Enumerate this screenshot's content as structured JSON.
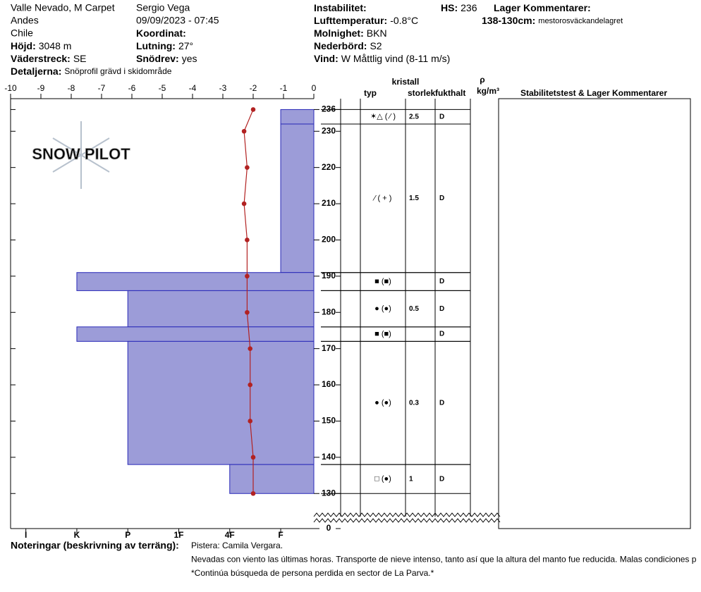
{
  "header": {
    "site": "Valle Nevado, M Carpet",
    "range": "Andes",
    "country": "Chile",
    "elevation": {
      "label": "Höjd:",
      "value": "3048 m"
    },
    "aspect": {
      "label": "Väderstreck:",
      "value": "SE"
    },
    "details": {
      "label": "Detaljerna:",
      "value": "Snöprofil grävd i skidområde"
    },
    "observer": "Sergio Vega",
    "datetime": "09/09/2023 - 07:45",
    "coordinates": {
      "label": "Koordinat:"
    },
    "slope": {
      "label": "Lutning:",
      "value": "27°"
    },
    "wind_loading": {
      "label": "Snödrev:",
      "value": "yes"
    },
    "instability": {
      "label": "Instabilitet:"
    },
    "air_temp": {
      "label": "Lufttemperatur:",
      "value": "-0.8°C"
    },
    "sky": {
      "label": "Molnighet:",
      "value": "BKN"
    },
    "precip": {
      "label": "Nederbörd:",
      "value": "S2"
    },
    "wind": {
      "label": "Vind:",
      "value": "W Måttlig vind (8-11 m/s)"
    },
    "hs": {
      "label": "HS:",
      "value": "236"
    },
    "layer_comments": {
      "label": "Lager Kommentarer:"
    },
    "layer_comment": {
      "label": "138-130cm:",
      "value": "mestorosväckandelagret"
    }
  },
  "logo": "SNOW PILOT",
  "table_headers": {
    "crystal": "kristall",
    "type": "typ",
    "size": "storlek",
    "moisture": "fukthalt",
    "density": "ρ",
    "density_unit": "kg/m³",
    "comments": "Stabilitetstest & Lager Kommentarer"
  },
  "chart_data": {
    "type": "snow_profile",
    "xlim": [
      -10,
      0
    ],
    "xticks": [
      -10,
      -9,
      -8,
      -7,
      -6,
      -5,
      -4,
      -3,
      -2,
      -1,
      0
    ],
    "ylim": [
      0,
      239
    ],
    "yticks": [
      236,
      230,
      220,
      210,
      200,
      190,
      180,
      170,
      160,
      150,
      140,
      130,
      0
    ],
    "hardness_lim": [
      6.3,
      0.35
    ],
    "hardness_ticks": [
      {
        "value": 6,
        "label": "I"
      },
      {
        "value": 5,
        "label": "K"
      },
      {
        "value": 4,
        "label": "P"
      },
      {
        "value": 3,
        "label": "1F"
      },
      {
        "value": 2,
        "label": "4F"
      },
      {
        "value": 1,
        "label": "F"
      }
    ],
    "layer_color": "#9c9cd8",
    "layer_edge": "#2a2ab8",
    "layers": [
      {
        "top": 236,
        "bottom": 232,
        "hardness": 1,
        "grain": "✶△ ( ⁄ )",
        "size": "2.5",
        "moisture": "D"
      },
      {
        "top": 232,
        "bottom": 191,
        "hardness": 1,
        "grain": "⁄ ( + )",
        "size": "1.5",
        "moisture": "D"
      },
      {
        "top": 191,
        "bottom": 186,
        "hardness": 5,
        "grain": "■ (■)",
        "size": null,
        "moisture": "D"
      },
      {
        "top": 186,
        "bottom": 176,
        "hardness": 4,
        "grain": "● (●)",
        "size": "0.5",
        "moisture": "D"
      },
      {
        "top": 176,
        "bottom": 172,
        "hardness": 5,
        "grain": "■ (■)",
        "size": null,
        "moisture": "D"
      },
      {
        "top": 172,
        "bottom": 138,
        "hardness": 4,
        "grain": "● (●)",
        "size": "0.3",
        "moisture": "D"
      },
      {
        "top": 138,
        "bottom": 130,
        "hardness": 2,
        "grain": "□ (●)",
        "size": "1",
        "moisture": "D"
      }
    ],
    "temperature": {
      "color": "#b22222",
      "depth": [
        236,
        230,
        220,
        210,
        200,
        190,
        180,
        170,
        160,
        150,
        140,
        130
      ],
      "values": [
        -2.0,
        -2.3,
        -2.2,
        -2.3,
        -2.2,
        -2.2,
        -2.2,
        -2.1,
        -2.1,
        -2.1,
        -2.0,
        -2.0
      ]
    }
  },
  "notes": {
    "label": "Noteringar (beskrivning av terräng):",
    "lines": [
      "Pistera: Camila Vergara.",
      "Nevadas con viento las últimas horas. Transporte de nieve intenso, tanto así que la altura del manto fue reducida. Malas condiciones p",
      "*Continúa búsqueda de persona perdida en sector de La Parva.*"
    ]
  }
}
